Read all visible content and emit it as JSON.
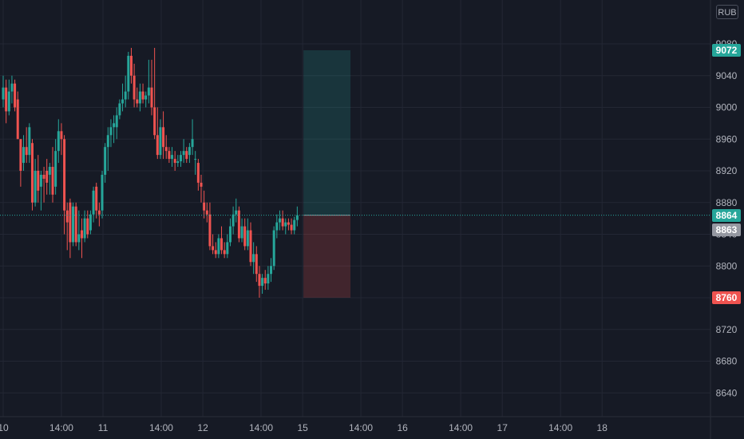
{
  "currency": "RUB",
  "colors": {
    "background": "#161a25",
    "grid": "#232734",
    "up": "#26a69a",
    "down": "#ef5350",
    "axis_text": "#b2b5be",
    "last_price_line": "#26a69a",
    "target_zone": "#26a69a",
    "stop_zone": "#ef5350",
    "gray_label": "#9598a1"
  },
  "price_labels": {
    "target": "9072",
    "last": "8864",
    "current": "8863",
    "stop": "8760"
  },
  "chart_data": {
    "type": "candlestick",
    "title": "",
    "xlabel": "",
    "ylabel": "",
    "ylim": [
      8610,
      9100
    ],
    "grid": true,
    "y_ticks": [
      9080,
      9040,
      9000,
      8960,
      8920,
      8880,
      8840,
      8800,
      8760,
      8720,
      8680,
      8640
    ],
    "x_ticks": [
      {
        "label": "10",
        "hour": 0
      },
      {
        "label": "14:00",
        "hour": 14
      },
      {
        "label": "11",
        "hour": 24
      },
      {
        "label": "14:00",
        "hour": 38
      },
      {
        "label": "12",
        "hour": 48
      },
      {
        "label": "14:00",
        "hour": 62
      },
      {
        "label": "15",
        "hour": 72
      },
      {
        "label": "14:00",
        "hour": 86
      },
      {
        "label": "16",
        "hour": 96
      },
      {
        "label": "14:00",
        "hour": 110
      },
      {
        "label": "17",
        "hour": 120
      },
      {
        "label": "14:00",
        "hour": 134
      },
      {
        "label": "18",
        "hour": 144
      }
    ],
    "candles": [
      [
        9010,
        9040,
        9000,
        9025
      ],
      [
        9025,
        9035,
        8980,
        8995
      ],
      [
        8995,
        9035,
        8990,
        9020
      ],
      [
        9020,
        9040,
        9005,
        9030
      ],
      [
        9030,
        9035,
        8995,
        9000
      ],
      [
        9010,
        9020,
        8960,
        8960
      ],
      [
        8960,
        8960,
        8900,
        8920
      ],
      [
        8930,
        8965,
        8920,
        8950
      ],
      [
        8950,
        8975,
        8930,
        8940
      ],
      [
        8940,
        8980,
        8930,
        8975
      ],
      [
        8955,
        8960,
        8870,
        8880
      ],
      [
        8880,
        8935,
        8875,
        8920
      ],
      [
        8920,
        8940,
        8880,
        8895
      ],
      [
        8900,
        8920,
        8870,
        8915
      ],
      [
        8915,
        8925,
        8880,
        8910
      ],
      [
        8920,
        8935,
        8890,
        8905
      ],
      [
        8915,
        8930,
        8890,
        8925
      ],
      [
        8925,
        8950,
        8880,
        8890
      ],
      [
        8900,
        8960,
        8890,
        8945
      ],
      [
        8945,
        8985,
        8930,
        8970
      ],
      [
        8970,
        8980,
        8940,
        8960
      ],
      [
        8960,
        8965,
        8840,
        8870
      ],
      [
        8870,
        8880,
        8820,
        8855
      ],
      [
        8880,
        8885,
        8810,
        8830
      ],
      [
        8830,
        8880,
        8825,
        8875
      ],
      [
        8875,
        8880,
        8825,
        8830
      ],
      [
        8830,
        8870,
        8820,
        8840
      ],
      [
        8845,
        8860,
        8810,
        8835
      ],
      [
        8835,
        8870,
        8830,
        8860
      ],
      [
        8860,
        8870,
        8835,
        8840
      ],
      [
        8845,
        8870,
        8840,
        8865
      ],
      [
        8865,
        8900,
        8855,
        8895
      ],
      [
        8900,
        8905,
        8860,
        8870
      ],
      [
        8870,
        8880,
        8850,
        8865
      ],
      [
        8870,
        8920,
        8860,
        8915
      ],
      [
        8915,
        8955,
        8905,
        8950
      ],
      [
        8950,
        8975,
        8920,
        8965
      ],
      [
        8965,
        8985,
        8950,
        8975
      ],
      [
        8975,
        8990,
        8955,
        8980
      ],
      [
        8975,
        9000,
        8960,
        8990
      ],
      [
        8990,
        9010,
        8985,
        9005
      ],
      [
        9005,
        9030,
        8995,
        9010
      ],
      [
        9010,
        9040,
        9000,
        9020
      ],
      [
        9020,
        9070,
        9010,
        9065
      ],
      [
        9065,
        9075,
        9030,
        9040
      ],
      [
        9040,
        9055,
        9000,
        9010
      ],
      [
        9010,
        9025,
        9000,
        9005
      ],
      [
        9005,
        9030,
        8995,
        9020
      ],
      [
        9020,
        9030,
        9005,
        9010
      ],
      [
        9010,
        9020,
        9000,
        9015
      ],
      [
        9015,
        9060,
        9005,
        9025
      ],
      [
        9025,
        9060,
        8990,
        9000
      ],
      [
        9000,
        9075,
        8960,
        8965
      ],
      [
        8965,
        9000,
        8935,
        8940
      ],
      [
        8940,
        8985,
        8935,
        8975
      ],
      [
        8975,
        8995,
        8935,
        8950
      ],
      [
        8950,
        8965,
        8935,
        8945
      ],
      [
        8945,
        8950,
        8930,
        8935
      ],
      [
        8935,
        8950,
        8925,
        8940
      ],
      [
        8935,
        8945,
        8920,
        8930
      ],
      [
        8930,
        8940,
        8925,
        8932
      ],
      [
        8932,
        8945,
        8925,
        8940
      ],
      [
        8940,
        8960,
        8930,
        8945
      ],
      [
        8945,
        8950,
        8930,
        8935
      ],
      [
        8940,
        8955,
        8930,
        8950
      ],
      [
        8950,
        8985,
        8940,
        8960
      ],
      [
        8935,
        8945,
        8915,
        8935
      ],
      [
        8930,
        8935,
        8895,
        8905
      ],
      [
        8905,
        8915,
        8880,
        8900
      ],
      [
        8880,
        8895,
        8860,
        8870
      ],
      [
        8870,
        8880,
        8855,
        8865
      ],
      [
        8865,
        8880,
        8820,
        8825
      ],
      [
        8825,
        8840,
        8815,
        8820
      ],
      [
        8820,
        8830,
        8810,
        8815
      ],
      [
        8815,
        8840,
        8810,
        8835
      ],
      [
        8835,
        8850,
        8815,
        8820
      ],
      [
        8820,
        8830,
        8810,
        8815
      ],
      [
        8815,
        8840,
        8810,
        8830
      ],
      [
        8830,
        8860,
        8825,
        8850
      ],
      [
        8850,
        8875,
        8840,
        8865
      ],
      [
        8865,
        8885,
        8855,
        8870
      ],
      [
        8870,
        8875,
        8830,
        8835
      ],
      [
        8835,
        8860,
        8830,
        8850
      ],
      [
        8850,
        8860,
        8820,
        8825
      ],
      [
        8825,
        8860,
        8820,
        8845
      ],
      [
        8845,
        8855,
        8800,
        8805
      ],
      [
        8805,
        8830,
        8790,
        8815
      ],
      [
        8815,
        8825,
        8780,
        8790
      ],
      [
        8790,
        8800,
        8760,
        8775
      ],
      [
        8775,
        8790,
        8765,
        8785
      ],
      [
        8785,
        8795,
        8770,
        8778
      ],
      [
        8778,
        8800,
        8770,
        8790
      ],
      [
        8790,
        8810,
        8780,
        8800
      ],
      [
        8800,
        8850,
        8795,
        8845
      ],
      [
        8845,
        8865,
        8835,
        8855
      ],
      [
        8855,
        8870,
        8845,
        8860
      ],
      [
        8860,
        8870,
        8845,
        8850
      ],
      [
        8850,
        8860,
        8840,
        8855
      ],
      [
        8855,
        8860,
        8845,
        8852
      ],
      [
        8852,
        8860,
        8840,
        8845
      ],
      [
        8845,
        8862,
        8840,
        8858
      ],
      [
        8858,
        8875,
        8850,
        8864
      ]
    ],
    "position": {
      "entry": 8864,
      "target": 9072,
      "stop": 8760,
      "start_hour": 72.2,
      "end_hour": 83.5
    }
  }
}
